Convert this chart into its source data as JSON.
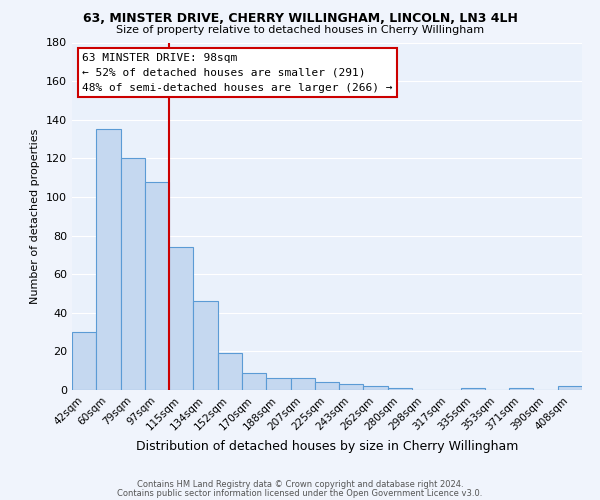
{
  "title1": "63, MINSTER DRIVE, CHERRY WILLINGHAM, LINCOLN, LN3 4LH",
  "title2": "Size of property relative to detached houses in Cherry Willingham",
  "xlabel": "Distribution of detached houses by size in Cherry Willingham",
  "ylabel": "Number of detached properties",
  "footer1": "Contains HM Land Registry data © Crown copyright and database right 2024.",
  "footer2": "Contains public sector information licensed under the Open Government Licence v3.0.",
  "categories": [
    "42sqm",
    "60sqm",
    "79sqm",
    "97sqm",
    "115sqm",
    "134sqm",
    "152sqm",
    "170sqm",
    "188sqm",
    "207sqm",
    "225sqm",
    "243sqm",
    "262sqm",
    "280sqm",
    "298sqm",
    "317sqm",
    "335sqm",
    "353sqm",
    "371sqm",
    "390sqm",
    "408sqm"
  ],
  "values": [
    30,
    135,
    120,
    108,
    74,
    46,
    19,
    9,
    6,
    6,
    4,
    3,
    2,
    1,
    0,
    0,
    1,
    0,
    1,
    0,
    2
  ],
  "bar_color": "#c5d8f0",
  "bar_edge_color": "#5b9bd5",
  "property_label": "63 MINSTER DRIVE: 98sqm",
  "annotation_line1": "← 52% of detached houses are smaller (291)",
  "annotation_line2": "48% of semi-detached houses are larger (266) →",
  "vline_color": "#cc0000",
  "vline_x_index": 3.5,
  "ylim": [
    0,
    180
  ],
  "yticks": [
    0,
    20,
    40,
    60,
    80,
    100,
    120,
    140,
    160,
    180
  ],
  "bg_color": "#eaf1fb",
  "fig_bg_color": "#f0f4fc",
  "grid_color": "#ffffff"
}
